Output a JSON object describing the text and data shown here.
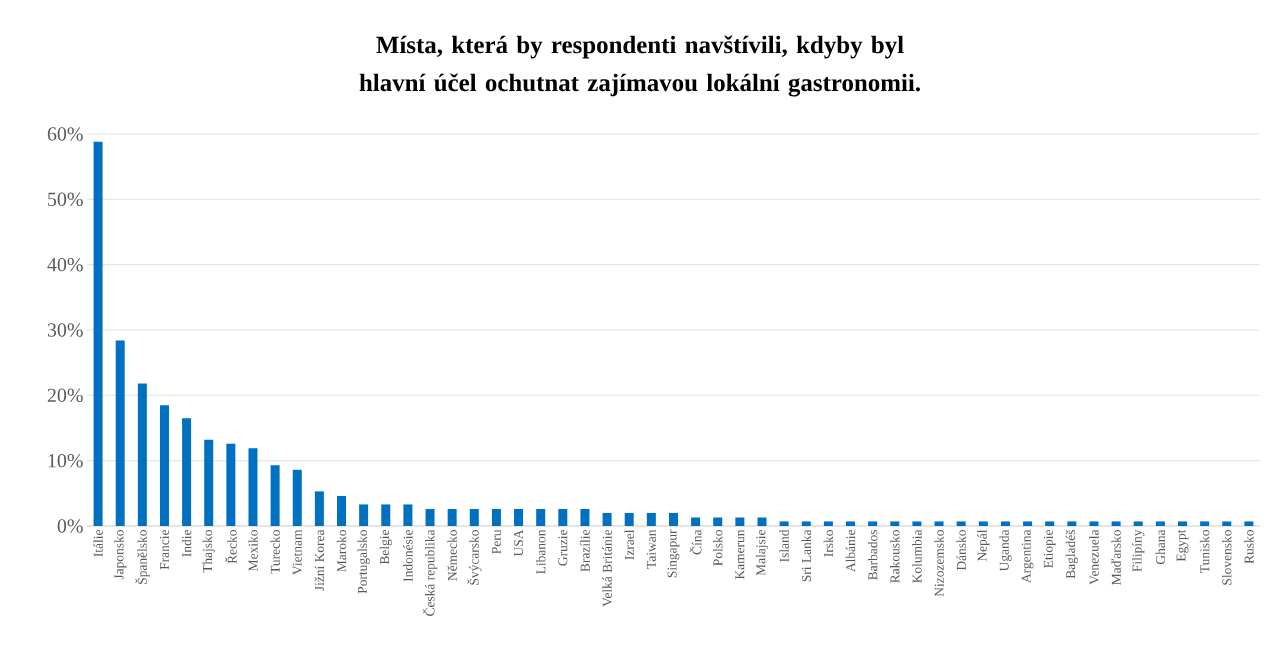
{
  "chart_data": {
    "type": "bar",
    "title": "Místa, která by respondenti navštívili, kdyby byl hlavní účel ochutnat zajímavou lokální gastronomii.",
    "categories": [
      "Itálie",
      "Japonsko",
      "Španělsko",
      "Francie",
      "Indie",
      "Thajsko",
      "Řecko",
      "Mexiko",
      "Turecko",
      "Vietnam",
      "Jižní Korea",
      "Maroko",
      "Portugalsko",
      "Belgie",
      "Indonésie",
      "Česká republika",
      "Německo",
      "Švýcarsko",
      "Peru",
      "USA",
      "Libanon",
      "Gruzie",
      "Brazílie",
      "Velká Británie",
      "Izrael",
      "Taiwan",
      "Singapur",
      "Čína",
      "Polsko",
      "Kamerun",
      "Malajsie",
      "Island",
      "Sri Lanka",
      "Irsko",
      "Albánie",
      "Barbados",
      "Rakousko",
      "Kolumbia",
      "Nizozemsko",
      "Dánsko",
      "Nepál",
      "Uganda",
      "Argentina",
      "Etiopie",
      "Bagladéš",
      "Venezuela",
      "Maďarsko",
      "Filipíny",
      "Ghana",
      "Egypt",
      "Tunisko",
      "Slovensko",
      "Rusko"
    ],
    "values": [
      58.8,
      28.4,
      21.8,
      18.5,
      16.5,
      13.2,
      12.6,
      11.9,
      9.3,
      8.6,
      5.3,
      4.6,
      3.3,
      3.3,
      3.3,
      2.6,
      2.6,
      2.6,
      2.6,
      2.6,
      2.6,
      2.6,
      2.6,
      2.0,
      2.0,
      2.0,
      2.0,
      1.3,
      1.3,
      1.3,
      1.3,
      0.7,
      0.7,
      0.7,
      0.7,
      0.7,
      0.7,
      0.7,
      0.7,
      0.7,
      0.7,
      0.7,
      0.7,
      0.7,
      0.7,
      0.7,
      0.7,
      0.7,
      0.7,
      0.7,
      0.7,
      0.7,
      0.7
    ],
    "color": "#0070c0",
    "ylim": [
      0,
      60
    ],
    "yticks": [
      {
        "value": 0,
        "label": "0%"
      },
      {
        "value": 10,
        "label": "10%"
      },
      {
        "value": 20,
        "label": "20%"
      },
      {
        "value": 30,
        "label": "30%"
      },
      {
        "value": 40,
        "label": "40%"
      },
      {
        "value": 50,
        "label": "50%"
      },
      {
        "value": 60,
        "label": "60%"
      }
    ],
    "grid": "y"
  }
}
